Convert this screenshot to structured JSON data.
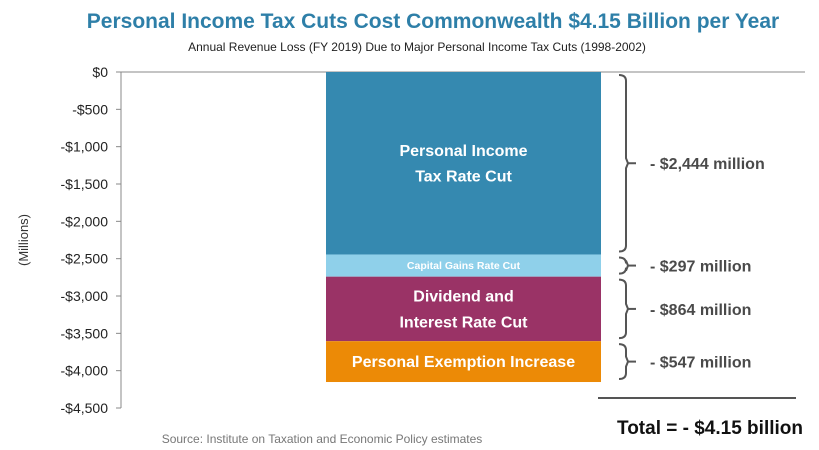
{
  "chart_data": {
    "type": "bar",
    "title": "Personal Income Tax Cuts Cost Commonwealth $4.15 Billion per Year",
    "subtitle": "Annual Revenue Loss (FY 2019) Due to Major Personal Income Tax Cuts (1998-2002)",
    "ylabel": "(Millions)",
    "ylim": [
      -4500,
      0
    ],
    "yticks": [
      0,
      -500,
      -1000,
      -1500,
      -2000,
      -2500,
      -3000,
      -3500,
      -4000,
      -4500
    ],
    "ytick_labels": [
      "$0",
      "-$500",
      "-$1,000",
      "-$1,500",
      "-$2,000",
      "-$2,500",
      "-$3,000",
      "-$3,500",
      "-$4,000",
      "-$4,500"
    ],
    "grid": false,
    "stacked": true,
    "series": [
      {
        "label": "Personal Income Tax Rate Cut",
        "value": -2444,
        "color": "#3589b0",
        "annotation": "- $2,444 million"
      },
      {
        "label": "Capital Gains Rate Cut",
        "value": -297,
        "color": "#8fd0ea",
        "annotation": "- $297 million"
      },
      {
        "label": "Dividend and Interest Rate Cut",
        "value": -864,
        "color": "#9a3366",
        "annotation": "- $864 million"
      },
      {
        "label": "Personal Exemption Increase",
        "value": -547,
        "color": "#ec8a06",
        "annotation": "- $547 million"
      }
    ],
    "total_label": "Total = - $4.15 billion",
    "source": "Source: Institute on Taxation and Economic Policy estimates",
    "colors": {
      "title": "#2e7fa8",
      "text": "#333333",
      "annotation": "#4a4a4a",
      "axis": "#555555"
    }
  }
}
